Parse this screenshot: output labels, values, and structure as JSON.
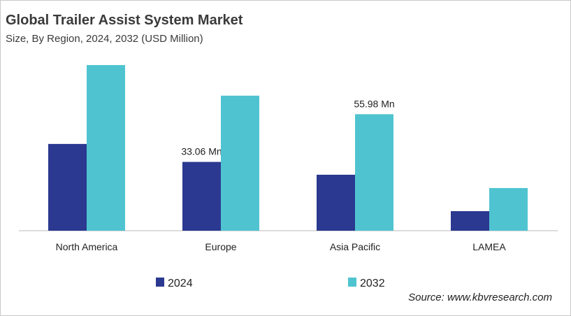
{
  "chart_data": {
    "type": "bar",
    "title": "Global Trailer Assist System Market",
    "subtitle": "Size, By Region, 2024, 2032 (USD Million)",
    "categories": [
      "North America",
      "Europe",
      "Asia Pacific",
      "LAMEA"
    ],
    "series": [
      {
        "name": "2024",
        "color": "#2b3990",
        "values": [
          41.7,
          33.06,
          26.9,
          9.4
        ],
        "labels": [
          null,
          "33.06 Mn",
          null,
          null
        ]
      },
      {
        "name": "2032",
        "color": "#4fc4d0",
        "values": [
          79.6,
          64.9,
          55.98,
          20.5
        ],
        "labels": [
          null,
          null,
          "55.98 Mn",
          null
        ]
      }
    ],
    "xlabel": "",
    "ylabel": "",
    "ylim": [
      0,
      85
    ],
    "grid": false,
    "legend": "bottom",
    "source": "Source: www.kbvresearch.com"
  }
}
